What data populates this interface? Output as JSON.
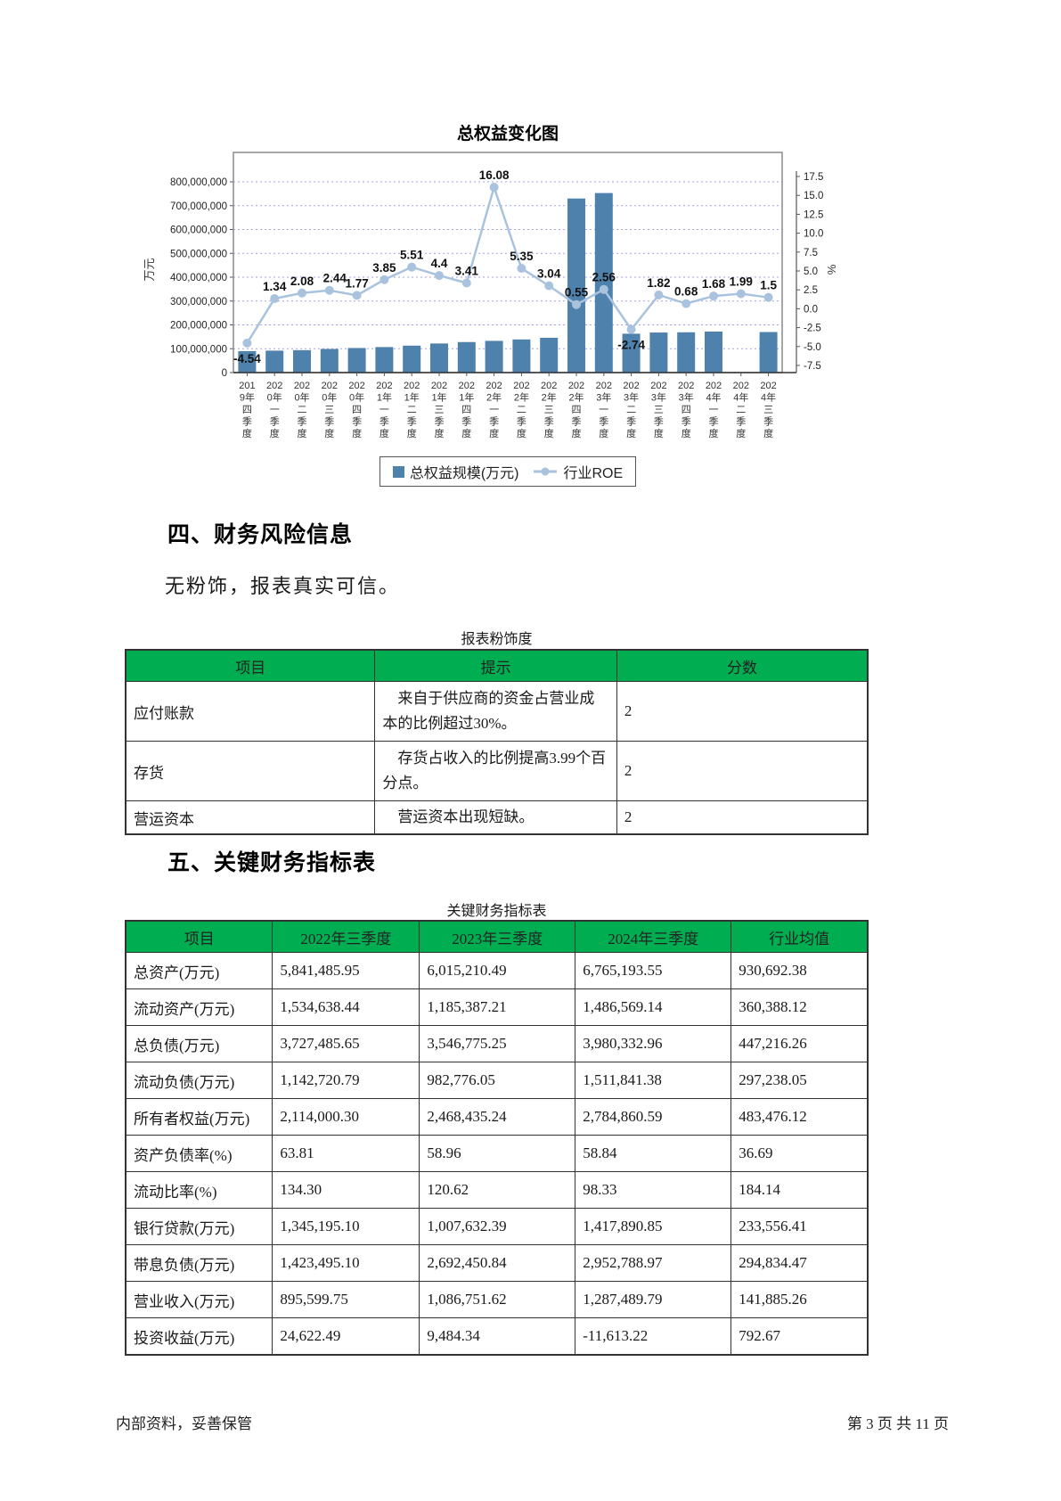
{
  "colors": {
    "header_green": "#00ad50",
    "bar_blue": "#4f81ad",
    "line_blue": "#a9c3df",
    "grid_blue": "#7b7be8"
  },
  "chart": {
    "title": "总权益变化图",
    "left_axis_label": "万元",
    "right_axis_label": "%",
    "legend": [
      "总权益规模(万元)",
      "行业ROE"
    ]
  },
  "chart_data": {
    "type": "combo",
    "title": "总权益变化图",
    "categories": [
      "2019年四季度",
      "2020年一季度",
      "2020年二季度",
      "2020年三季度",
      "2020年四季度",
      "2021年一季度",
      "2021年二季度",
      "2021年三季度",
      "2021年四季度",
      "2022年一季度",
      "2022年二季度",
      "2022年三季度",
      "2022年四季度",
      "2023年一季度",
      "2023年二季度",
      "2023年三季度",
      "2023年四季度",
      "2024年一季度",
      "2024年二季度",
      "2024年三季度"
    ],
    "series": [
      {
        "name": "总权益规模(万元)",
        "type": "bar",
        "axis": "left",
        "values": [
          90000000,
          92000000,
          94000000,
          99000000,
          103000000,
          107000000,
          113000000,
          122000000,
          128000000,
          133000000,
          139000000,
          146000000,
          730000000,
          753000000,
          163000000,
          168000000,
          169000000,
          172000000,
          0,
          170000000
        ]
      },
      {
        "name": "行业ROE",
        "type": "line",
        "axis": "right",
        "values": [
          -4.54,
          1.34,
          2.08,
          2.44,
          1.77,
          3.85,
          5.51,
          4.4,
          3.41,
          16.08,
          5.35,
          3.04,
          0.55,
          2.56,
          -2.74,
          1.82,
          0.68,
          1.68,
          1.99,
          1.5
        ]
      }
    ],
    "left_axis": {
      "label": "万元",
      "min": 0,
      "max": 800000000,
      "tick_step": 100000000
    },
    "right_axis": {
      "label": "%",
      "min": -7.5,
      "max": 17.5,
      "tick_step": 2.5
    },
    "grid": true,
    "legend_position": "bottom"
  },
  "sections": {
    "risk": {
      "heading": "四、财务风险信息",
      "paragraph": "无粉饰，报表真实可信。",
      "table_title": "报表粉饰度",
      "table": {
        "headers": [
          "项目",
          "提示",
          "分数"
        ],
        "rows": [
          {
            "item": "应付账款",
            "hint": "来自于供应商的资金占营业成本的比例超过30%。",
            "score": "2"
          },
          {
            "item": "存货",
            "hint": "存货占收入的比例提高3.99个百分点。",
            "score": "2"
          },
          {
            "item": "营运资本",
            "hint": "营运资本出现短缺。",
            "score": "2"
          }
        ]
      }
    },
    "indicators": {
      "heading": "五、关键财务指标表",
      "table_title": "关键财务指标表",
      "table": {
        "headers": [
          "项目",
          "2022年三季度",
          "2023年三季度",
          "2024年三季度",
          "行业均值"
        ],
        "rows": [
          [
            "总资产(万元)",
            "5,841,485.95",
            "6,015,210.49",
            "6,765,193.55",
            "930,692.38"
          ],
          [
            "流动资产(万元)",
            "1,534,638.44",
            "1,185,387.21",
            "1,486,569.14",
            "360,388.12"
          ],
          [
            "总负债(万元)",
            "3,727,485.65",
            "3,546,775.25",
            "3,980,332.96",
            "447,216.26"
          ],
          [
            "流动负债(万元)",
            "1,142,720.79",
            "982,776.05",
            "1,511,841.38",
            "297,238.05"
          ],
          [
            "所有者权益(万元)",
            "2,114,000.30",
            "2,468,435.24",
            "2,784,860.59",
            "483,476.12"
          ],
          [
            "资产负债率(%)",
            "63.81",
            "58.96",
            "58.84",
            "36.69"
          ],
          [
            "流动比率(%)",
            "134.30",
            "120.62",
            "98.33",
            "184.14"
          ],
          [
            "银行贷款(万元)",
            "1,345,195.10",
            "1,007,632.39",
            "1,417,890.85",
            "233,556.41"
          ],
          [
            "带息负债(万元)",
            "1,423,495.10",
            "2,692,450.84",
            "2,952,788.97",
            "294,834.47"
          ],
          [
            "营业收入(万元)",
            "895,599.75",
            "1,086,751.62",
            "1,287,489.79",
            "141,885.26"
          ],
          [
            "投资收益(万元)",
            "24,622.49",
            "9,484.34",
            "-11,613.22",
            "792.67"
          ]
        ]
      }
    }
  },
  "footer": {
    "left": "内部资料，妥善保管",
    "right": "第 3 页  共 11 页"
  }
}
